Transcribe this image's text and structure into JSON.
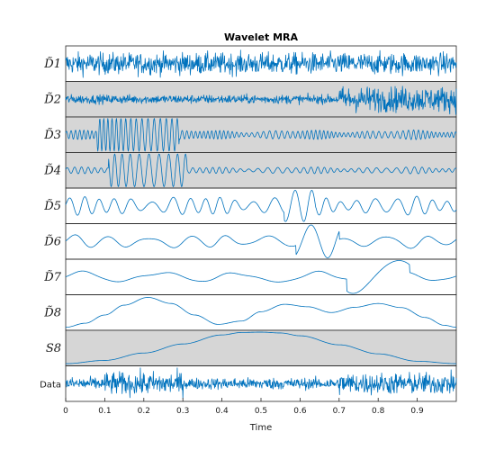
{
  "chart_data": {
    "type": "line",
    "title": "Wavelet MRA",
    "xlabel": "Time",
    "xlim": [
      0,
      1
    ],
    "x_ticks": [
      "0",
      "0.1",
      "0.2",
      "0.3",
      "0.4",
      "0.5",
      "0.6",
      "0.7",
      "0.8",
      "0.9"
    ],
    "x_tick_values": [
      0,
      0.1,
      0.2,
      0.3,
      0.4,
      0.5,
      0.6,
      0.7,
      0.8,
      0.9
    ],
    "line_color": "#0072BD",
    "shaded_color": "#d6d6d6",
    "grid": false,
    "series": [
      {
        "name": "D1",
        "shaded": false,
        "description_values": {
          "kind": "noise",
          "amplitude": 0.85,
          "bursts": []
        }
      },
      {
        "name": "D2",
        "shaded": true,
        "description_values": {
          "kind": "noise",
          "amplitude": 0.35,
          "bursts": [
            {
              "start": 0.7,
              "end": 1.0,
              "amplitude": 1.0
            }
          ]
        }
      },
      {
        "name": "D3",
        "shaded": true,
        "description_values": {
          "kind": "oscillation",
          "frequency": 90,
          "amplitude": 0.28,
          "bursts": [
            {
              "start": 0.08,
              "end": 0.29,
              "amplitude": 1.0
            }
          ]
        }
      },
      {
        "name": "D4",
        "shaded": true,
        "description_values": {
          "kind": "oscillation",
          "frequency": 55,
          "amplitude": 0.2,
          "bursts": [
            {
              "start": 0.11,
              "end": 0.31,
              "amplitude": 1.0
            }
          ]
        }
      },
      {
        "name": "D5",
        "shaded": false,
        "description_values": {
          "kind": "oscillation",
          "frequency": 25,
          "amplitude": 0.55,
          "bursts": [
            {
              "start": 0.56,
              "end": 0.64,
              "amplitude": 0.95
            }
          ]
        }
      },
      {
        "name": "D6",
        "shaded": false,
        "description_values": {
          "kind": "oscillation",
          "frequency": 11,
          "amplitude": 0.4,
          "bursts": [
            {
              "start": 0.59,
              "end": 0.7,
              "amplitude": 1.0
            }
          ]
        }
      },
      {
        "name": "D7",
        "shaded": false,
        "description_values": {
          "kind": "oscillation",
          "frequency": 5.5,
          "amplitude": 0.35,
          "bursts": [
            {
              "start": 0.72,
              "end": 0.88,
              "amplitude": 1.0
            }
          ]
        }
      },
      {
        "name": "D8",
        "shaded": false,
        "description_values": {
          "kind": "curve",
          "x": [
            0,
            0.05,
            0.1,
            0.15,
            0.21,
            0.27,
            0.33,
            0.39,
            0.45,
            0.5,
            0.56,
            0.62,
            0.68,
            0.74,
            0.8,
            0.86,
            0.92,
            0.97,
            1.0
          ],
          "y": [
            -0.9,
            -0.65,
            -0.15,
            0.45,
            0.92,
            0.55,
            -0.15,
            -0.72,
            -0.52,
            0.05,
            0.5,
            0.35,
            0.0,
            0.32,
            0.55,
            0.3,
            -0.3,
            -0.78,
            -0.9
          ]
        }
      },
      {
        "name": "S8",
        "shaded": true,
        "description_values": {
          "kind": "curve",
          "x": [
            0,
            0.1,
            0.2,
            0.3,
            0.4,
            0.45,
            0.5,
            0.55,
            0.6,
            0.7,
            0.8,
            0.9,
            1.0
          ],
          "y": [
            -0.95,
            -0.75,
            -0.3,
            0.25,
            0.8,
            0.95,
            0.97,
            0.92,
            0.75,
            0.2,
            -0.35,
            -0.8,
            -0.95
          ]
        }
      },
      {
        "name": "Data",
        "shaded": false,
        "description_values": {
          "kind": "noise",
          "amplitude": 0.45,
          "bursts": [
            {
              "start": 0.0,
              "end": 0.1,
              "amplitude": 0.5
            },
            {
              "start": 0.1,
              "end": 0.3,
              "amplitude": 0.9
            },
            {
              "start": 0.7,
              "end": 1.0,
              "amplitude": 0.85
            }
          ]
        }
      }
    ],
    "row_labels": [
      "D̃1",
      "D̃2",
      "D̃3",
      "D̃4",
      "D̃5",
      "D̃6",
      "D̃7",
      "D̃8",
      "S8",
      "Data"
    ]
  }
}
